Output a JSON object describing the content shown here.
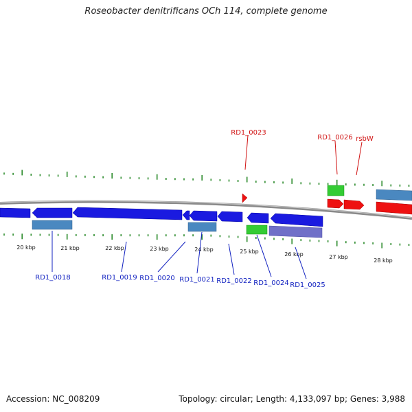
{
  "title": "Roseobacter denitrificans OCh 114, complete genome",
  "footer": {
    "accession": "Accession: NC_008209",
    "topology": "Topology: circular; Length: 4,133,097 bp; Genes: 3,988"
  },
  "colors": {
    "backbone": "#8a8a8a",
    "tick": "#2a8a2a",
    "forward_gene": "#ee1111",
    "reverse_gene": "#1a1ae0",
    "label_blue": "#1020c0",
    "label_red": "#d01010"
  },
  "scale_labels": [
    "20 kbp",
    "21 kbp",
    "22 kbp",
    "23 kbp",
    "24 kbp",
    "25 kbp",
    "26 kbp",
    "27 kbp",
    "28 kbp"
  ],
  "gene_labels": [
    {
      "text": "RD1_0018",
      "strand": "reverse"
    },
    {
      "text": "RD1_0019",
      "strand": "reverse"
    },
    {
      "text": "RD1_0020",
      "strand": "reverse"
    },
    {
      "text": "RD1_0021",
      "strand": "reverse"
    },
    {
      "text": "RD1_0022",
      "strand": "reverse"
    },
    {
      "text": "RD1_0024",
      "strand": "reverse"
    },
    {
      "text": "RD1_0025",
      "strand": "reverse"
    },
    {
      "text": "RD1_0023",
      "strand": "forward"
    },
    {
      "text": "RD1_0026",
      "strand": "forward"
    },
    {
      "text": "rsbW",
      "strand": "forward"
    }
  ]
}
